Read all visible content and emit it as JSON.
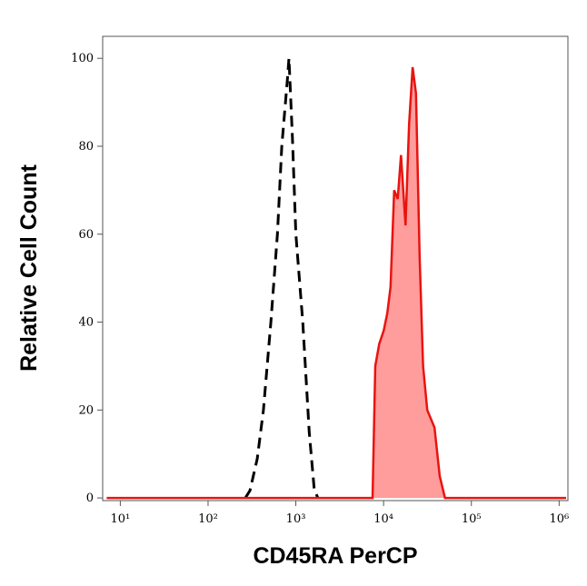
{
  "chart_data": {
    "type": "histogram-overlay",
    "x_label": "CD45RA PerCP",
    "y_label": "Relative Cell Count",
    "log_x": true,
    "xlim": [
      6.3,
      1259000
    ],
    "ylim": [
      -0.6,
      105
    ],
    "xticks": [
      {
        "value": 10,
        "label": "10¹"
      },
      {
        "value": 100,
        "label": "10²"
      },
      {
        "value": 1000,
        "label": "10³"
      },
      {
        "value": 10000,
        "label": "10⁴"
      },
      {
        "value": 100000,
        "label": "10⁵"
      },
      {
        "value": 1000000,
        "label": "10⁶"
      }
    ],
    "yticks": [
      0,
      20,
      40,
      60,
      80,
      100
    ],
    "series": [
      {
        "color": "#000000",
        "dashed": true,
        "filled": false,
        "x": [
          266,
          300,
          363,
          427,
          519,
          617,
          692,
          800,
          835,
          915,
          1000,
          1200,
          1420,
          1620,
          1780
        ],
        "values": [
          0,
          1.7,
          8.9,
          20,
          40,
          60,
          80,
          95,
          100,
          82,
          60,
          40,
          15,
          2,
          0
        ]
      },
      {
        "color": "#e8140f",
        "fill": "#ff9c9c",
        "dashed": false,
        "filled": true,
        "x": [
          7,
          7480,
          8040,
          8900,
          10000,
          11000,
          12000,
          13200,
          14500,
          15800,
          17800,
          19500,
          21400,
          23400,
          25700,
          28200,
          31400,
          38000,
          43600,
          50000,
          1200000
        ],
        "values": [
          0,
          0,
          30,
          35,
          38,
          42,
          48,
          70,
          68,
          78,
          62,
          85,
          98,
          92,
          55,
          30,
          20,
          16,
          5,
          0,
          0
        ]
      }
    ]
  }
}
